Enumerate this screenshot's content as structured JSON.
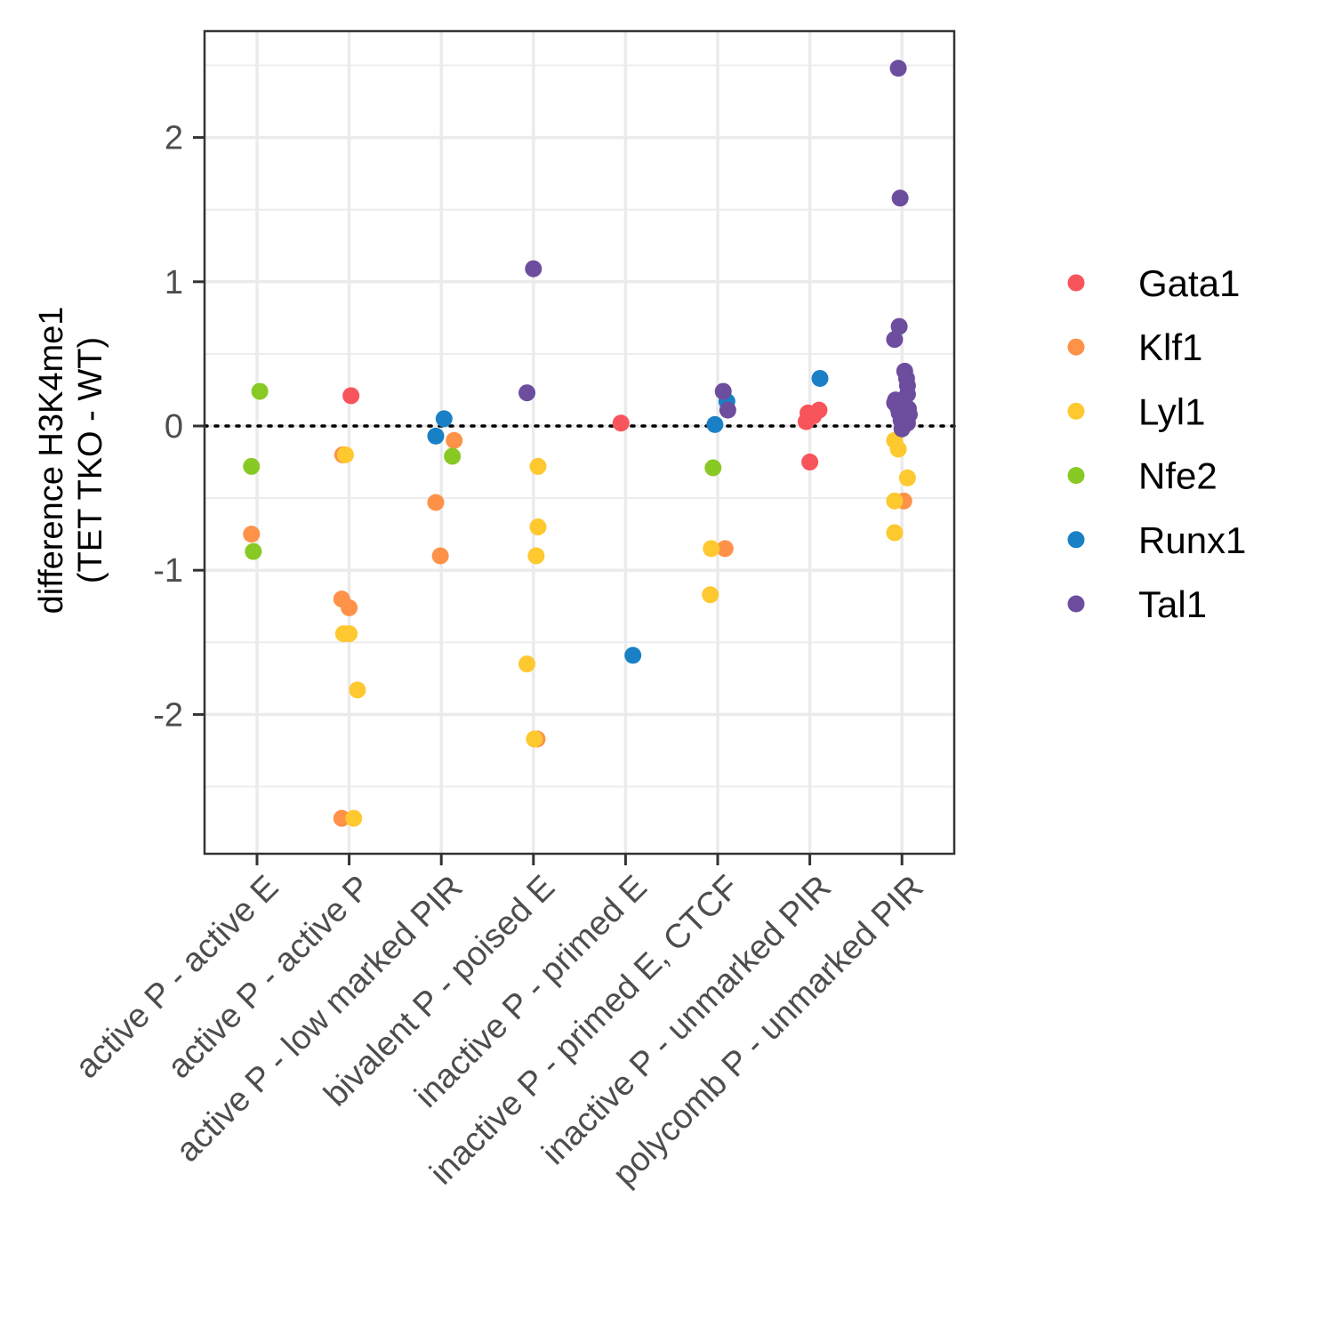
{
  "chart_data": {
    "type": "scatter",
    "ylabel_lines": [
      "difference H3K4me1",
      "(TET TKO - WT)"
    ],
    "categories": [
      "active P - active E",
      "active P - active P",
      "active P - low marked PIR",
      "bivalent P - poised E",
      "inactive P - primed E",
      "inactive P - primed E, CTCF",
      "inactive P - unmarked PIR",
      "polycomb P - unmarked PIR"
    ],
    "y_ticks": [
      2,
      1,
      0,
      -1,
      -2
    ],
    "ylim": [
      -2.95,
      2.75
    ],
    "grid": true,
    "reference_line": {
      "y": 0,
      "style": "dotted"
    },
    "legend_position": "right",
    "series": [
      {
        "name": "Gata1",
        "color": "#f8545b",
        "points": [
          {
            "cat": 1,
            "jitter": 0.02,
            "y": 0.21
          },
          {
            "cat": 4,
            "jitter": -0.05,
            "y": 0.02
          },
          {
            "cat": 6,
            "jitter": -0.04,
            "y": 0.03
          },
          {
            "cat": 6,
            "jitter": -0.02,
            "y": 0.09
          },
          {
            "cat": 6,
            "jitter": 0.04,
            "y": 0.07
          },
          {
            "cat": 6,
            "jitter": 0.1,
            "y": 0.11
          },
          {
            "cat": 6,
            "jitter": 0.0,
            "y": -0.25
          }
        ]
      },
      {
        "name": "Klf1",
        "color": "#fd9248",
        "points": [
          {
            "cat": 0,
            "jitter": -0.06,
            "y": -0.75
          },
          {
            "cat": 1,
            "jitter": -0.07,
            "y": -0.2
          },
          {
            "cat": 1,
            "jitter": -0.08,
            "y": -1.2
          },
          {
            "cat": 1,
            "jitter": 0.0,
            "y": -1.26
          },
          {
            "cat": 1,
            "jitter": -0.08,
            "y": -2.72
          },
          {
            "cat": 2,
            "jitter": 0.14,
            "y": -0.1
          },
          {
            "cat": 2,
            "jitter": -0.06,
            "y": -0.53
          },
          {
            "cat": 2,
            "jitter": -0.01,
            "y": -0.9
          },
          {
            "cat": 3,
            "jitter": 0.04,
            "y": -2.17
          },
          {
            "cat": 5,
            "jitter": 0.08,
            "y": -0.85
          },
          {
            "cat": 7,
            "jitter": 0.02,
            "y": -0.52
          }
        ]
      },
      {
        "name": "Lyl1",
        "color": "#fec82f",
        "points": [
          {
            "cat": 1,
            "jitter": -0.04,
            "y": -0.2
          },
          {
            "cat": 1,
            "jitter": -0.06,
            "y": -1.44
          },
          {
            "cat": 1,
            "jitter": 0.0,
            "y": -1.44
          },
          {
            "cat": 1,
            "jitter": 0.09,
            "y": -1.83
          },
          {
            "cat": 1,
            "jitter": 0.05,
            "y": -2.72
          },
          {
            "cat": 3,
            "jitter": 0.05,
            "y": -0.28
          },
          {
            "cat": 3,
            "jitter": 0.05,
            "y": -0.7
          },
          {
            "cat": 3,
            "jitter": 0.03,
            "y": -0.9
          },
          {
            "cat": 3,
            "jitter": -0.07,
            "y": -1.65
          },
          {
            "cat": 3,
            "jitter": 0.01,
            "y": -2.17
          },
          {
            "cat": 5,
            "jitter": -0.07,
            "y": -0.85
          },
          {
            "cat": 5,
            "jitter": -0.08,
            "y": -1.17
          },
          {
            "cat": 7,
            "jitter": -0.08,
            "y": -0.1
          },
          {
            "cat": 7,
            "jitter": -0.04,
            "y": -0.16
          },
          {
            "cat": 7,
            "jitter": 0.06,
            "y": -0.36
          },
          {
            "cat": 7,
            "jitter": -0.08,
            "y": -0.52
          },
          {
            "cat": 7,
            "jitter": -0.08,
            "y": -0.74
          }
        ]
      },
      {
        "name": "Nfe2",
        "color": "#89c925",
        "points": [
          {
            "cat": 0,
            "jitter": 0.03,
            "y": 0.24
          },
          {
            "cat": 0,
            "jitter": -0.06,
            "y": -0.28
          },
          {
            "cat": 0,
            "jitter": -0.04,
            "y": -0.87
          },
          {
            "cat": 2,
            "jitter": 0.12,
            "y": -0.21
          },
          {
            "cat": 5,
            "jitter": -0.05,
            "y": -0.29
          }
        ]
      },
      {
        "name": "Runx1",
        "color": "#1a80c6",
        "points": [
          {
            "cat": 2,
            "jitter": 0.03,
            "y": 0.05
          },
          {
            "cat": 2,
            "jitter": -0.06,
            "y": -0.07
          },
          {
            "cat": 4,
            "jitter": 0.08,
            "y": -1.59
          },
          {
            "cat": 5,
            "jitter": 0.1,
            "y": 0.17
          },
          {
            "cat": 5,
            "jitter": -0.03,
            "y": 0.01
          },
          {
            "cat": 6,
            "jitter": 0.11,
            "y": 0.33
          }
        ]
      },
      {
        "name": "Tal1",
        "color": "#6c4d9e",
        "points": [
          {
            "cat": 3,
            "jitter": 0.0,
            "y": 1.09
          },
          {
            "cat": 3,
            "jitter": -0.07,
            "y": 0.23
          },
          {
            "cat": 5,
            "jitter": 0.06,
            "y": 0.24
          },
          {
            "cat": 5,
            "jitter": 0.11,
            "y": 0.11
          },
          {
            "cat": 7,
            "jitter": -0.04,
            "y": 2.48
          },
          {
            "cat": 7,
            "jitter": -0.02,
            "y": 1.58
          },
          {
            "cat": 7,
            "jitter": -0.03,
            "y": 0.69
          },
          {
            "cat": 7,
            "jitter": -0.08,
            "y": 0.6
          },
          {
            "cat": 7,
            "jitter": 0.03,
            "y": 0.38
          },
          {
            "cat": 7,
            "jitter": 0.05,
            "y": 0.33
          },
          {
            "cat": 7,
            "jitter": 0.06,
            "y": 0.28
          },
          {
            "cat": 7,
            "jitter": 0.06,
            "y": 0.22
          },
          {
            "cat": 7,
            "jitter": -0.07,
            "y": 0.18
          },
          {
            "cat": 7,
            "jitter": -0.08,
            "y": 0.16
          },
          {
            "cat": 7,
            "jitter": 0.02,
            "y": 0.14
          },
          {
            "cat": 7,
            "jitter": -0.04,
            "y": 0.12
          },
          {
            "cat": 7,
            "jitter": 0.07,
            "y": 0.12
          },
          {
            "cat": 7,
            "jitter": -0.03,
            "y": 0.09
          },
          {
            "cat": 7,
            "jitter": 0.04,
            "y": 0.06
          },
          {
            "cat": 7,
            "jitter": 0.08,
            "y": 0.08
          },
          {
            "cat": 7,
            "jitter": -0.01,
            "y": 0.04
          },
          {
            "cat": 7,
            "jitter": 0.06,
            "y": 0.02
          },
          {
            "cat": 7,
            "jitter": 0.0,
            "y": -0.02
          }
        ]
      }
    ]
  }
}
